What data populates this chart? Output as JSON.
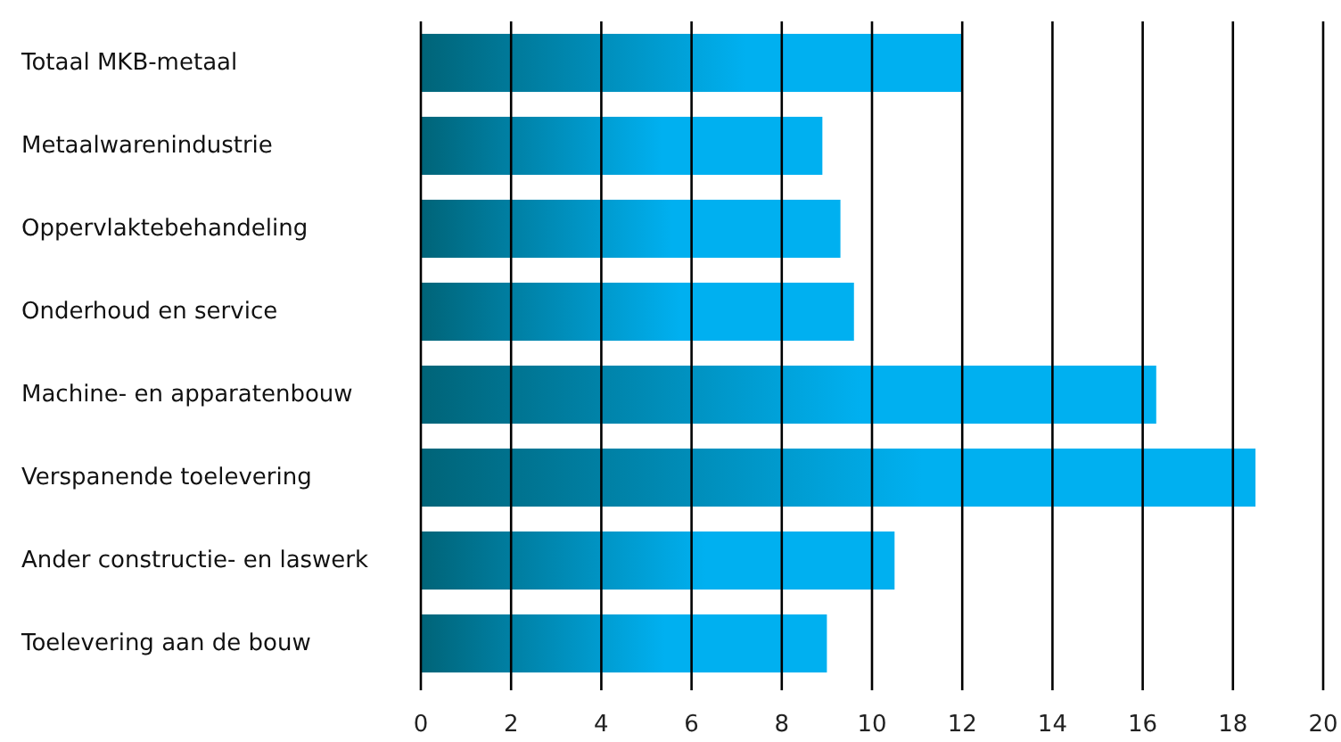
{
  "chart_data": {
    "type": "bar",
    "orientation": "horizontal",
    "categories": [
      "Totaal MKB-metaal",
      "Metaalwarenindustrie",
      "Oppervlaktebehandeling",
      "Onderhoud en service",
      "Machine- en apparatenbouw",
      "Verspanende toelevering",
      "Ander constructie- en laswerk",
      "Toelevering aan de bouw"
    ],
    "values": [
      12.0,
      8.9,
      9.3,
      9.6,
      16.3,
      18.5,
      10.5,
      9.0
    ],
    "color": "#00b0f0",
    "xlim": [
      0,
      20
    ],
    "xticks": [
      0,
      2,
      4,
      6,
      8,
      10,
      12,
      14,
      16,
      18,
      20
    ],
    "grid": "x"
  }
}
